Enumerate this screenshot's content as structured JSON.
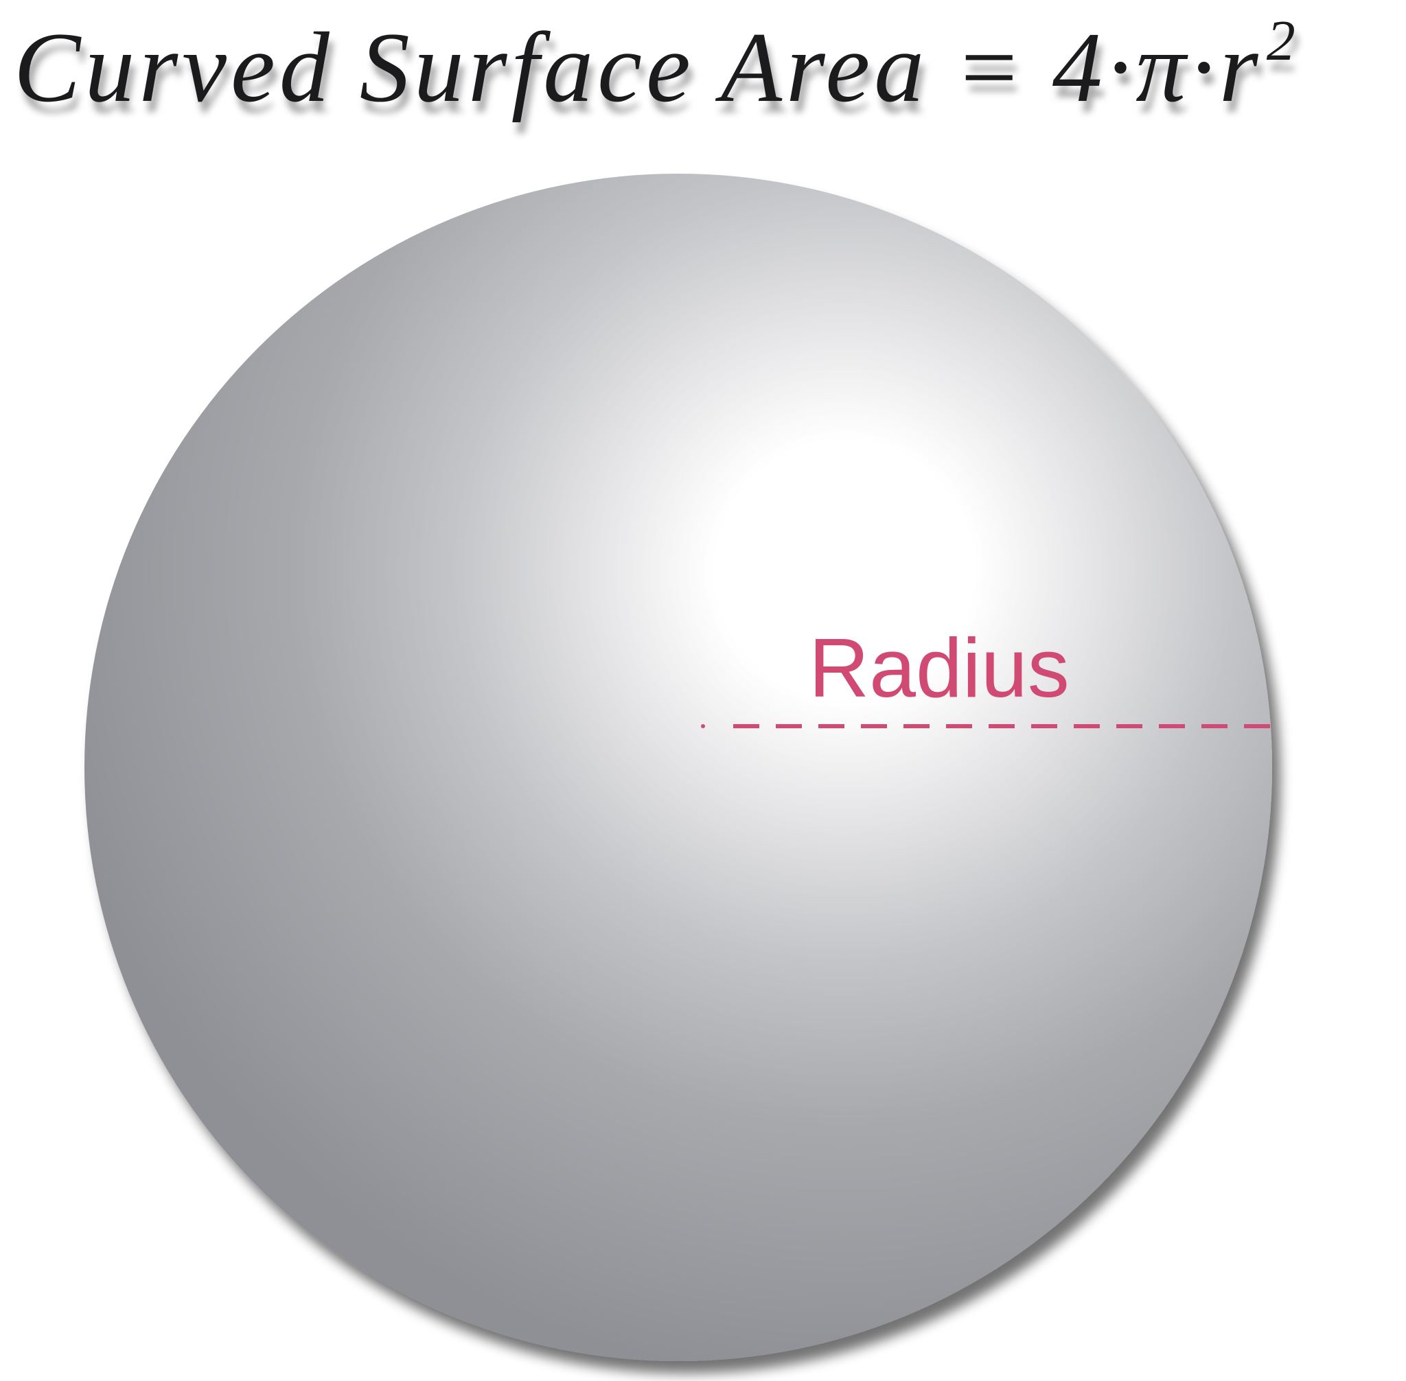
{
  "title": {
    "word1": "Curved",
    "word2": "Surface",
    "word3": "Area",
    "equals": "=",
    "formula": "4·π·r",
    "exponent": "2"
  },
  "diagram": {
    "radius_label": "Radius",
    "accent_color": "#d14a74",
    "sphere_shade_dark": "#929297",
    "sphere_shade_light": "#ffffff"
  }
}
